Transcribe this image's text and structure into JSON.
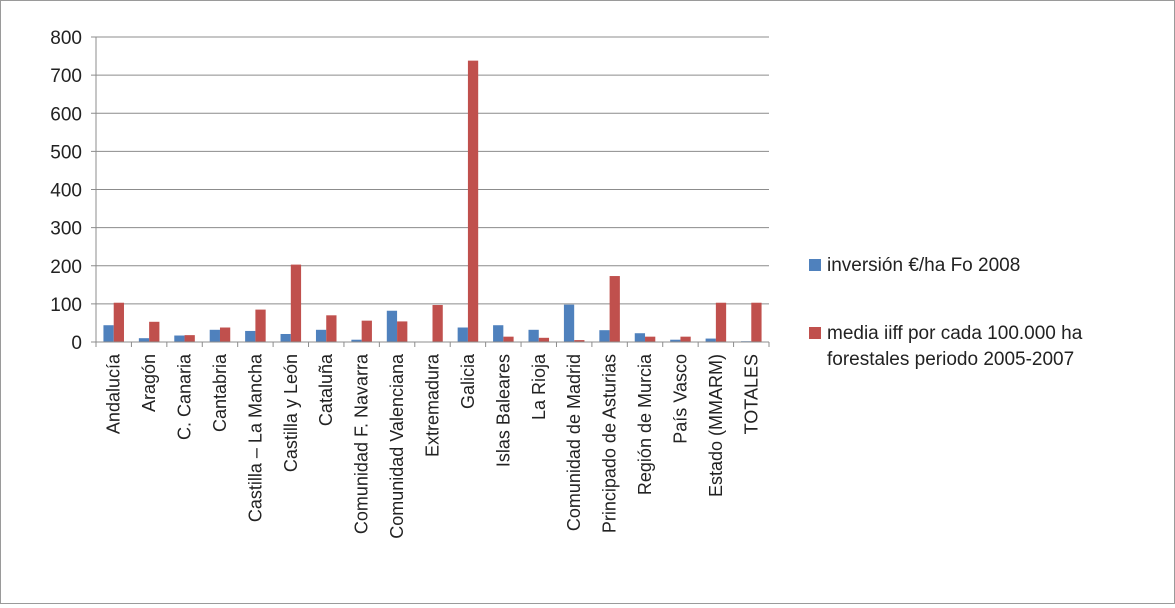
{
  "chart_data": {
    "type": "bar",
    "title": "",
    "xlabel": "",
    "ylabel": "",
    "ylim": [
      0,
      800
    ],
    "yticks": [
      0,
      100,
      200,
      300,
      400,
      500,
      600,
      700,
      800
    ],
    "grid": true,
    "legend_position": "right",
    "categories": [
      "Andalucía",
      "Aragón",
      "C. Canaria",
      "Cantabria",
      "Castilla – La Mancha",
      "Castilla y León",
      "Cataluña",
      "Comunidad F. Navarra",
      "Comunidad Valenciana",
      "Extremadura",
      "Galicia",
      "Islas Baleares",
      "La Rioja",
      "Comunidad de Madrid",
      "Principado de Asturias",
      "Región de Murcia",
      "País Vasco",
      "Estado (MMARM)",
      "TOTALES"
    ],
    "series": [
      {
        "name": "inversión €/ha Fo 2008",
        "color": "#4F81BD",
        "values": [
          44,
          10,
          17,
          32,
          29,
          21,
          32,
          6,
          82,
          0,
          38,
          44,
          32,
          98,
          31,
          23,
          6,
          9,
          2
        ]
      },
      {
        "name": "media iiff por cada 100.000 ha forestales periodo 2005-2007",
        "legend_lines": [
          "media iiff por cada 100.000 ha",
          "forestales periodo 2005-2007"
        ],
        "color": "#C0504D",
        "values": [
          103,
          53,
          18,
          38,
          85,
          203,
          70,
          56,
          54,
          97,
          738,
          14,
          11,
          5,
          173,
          14,
          14,
          103,
          103
        ]
      }
    ]
  }
}
